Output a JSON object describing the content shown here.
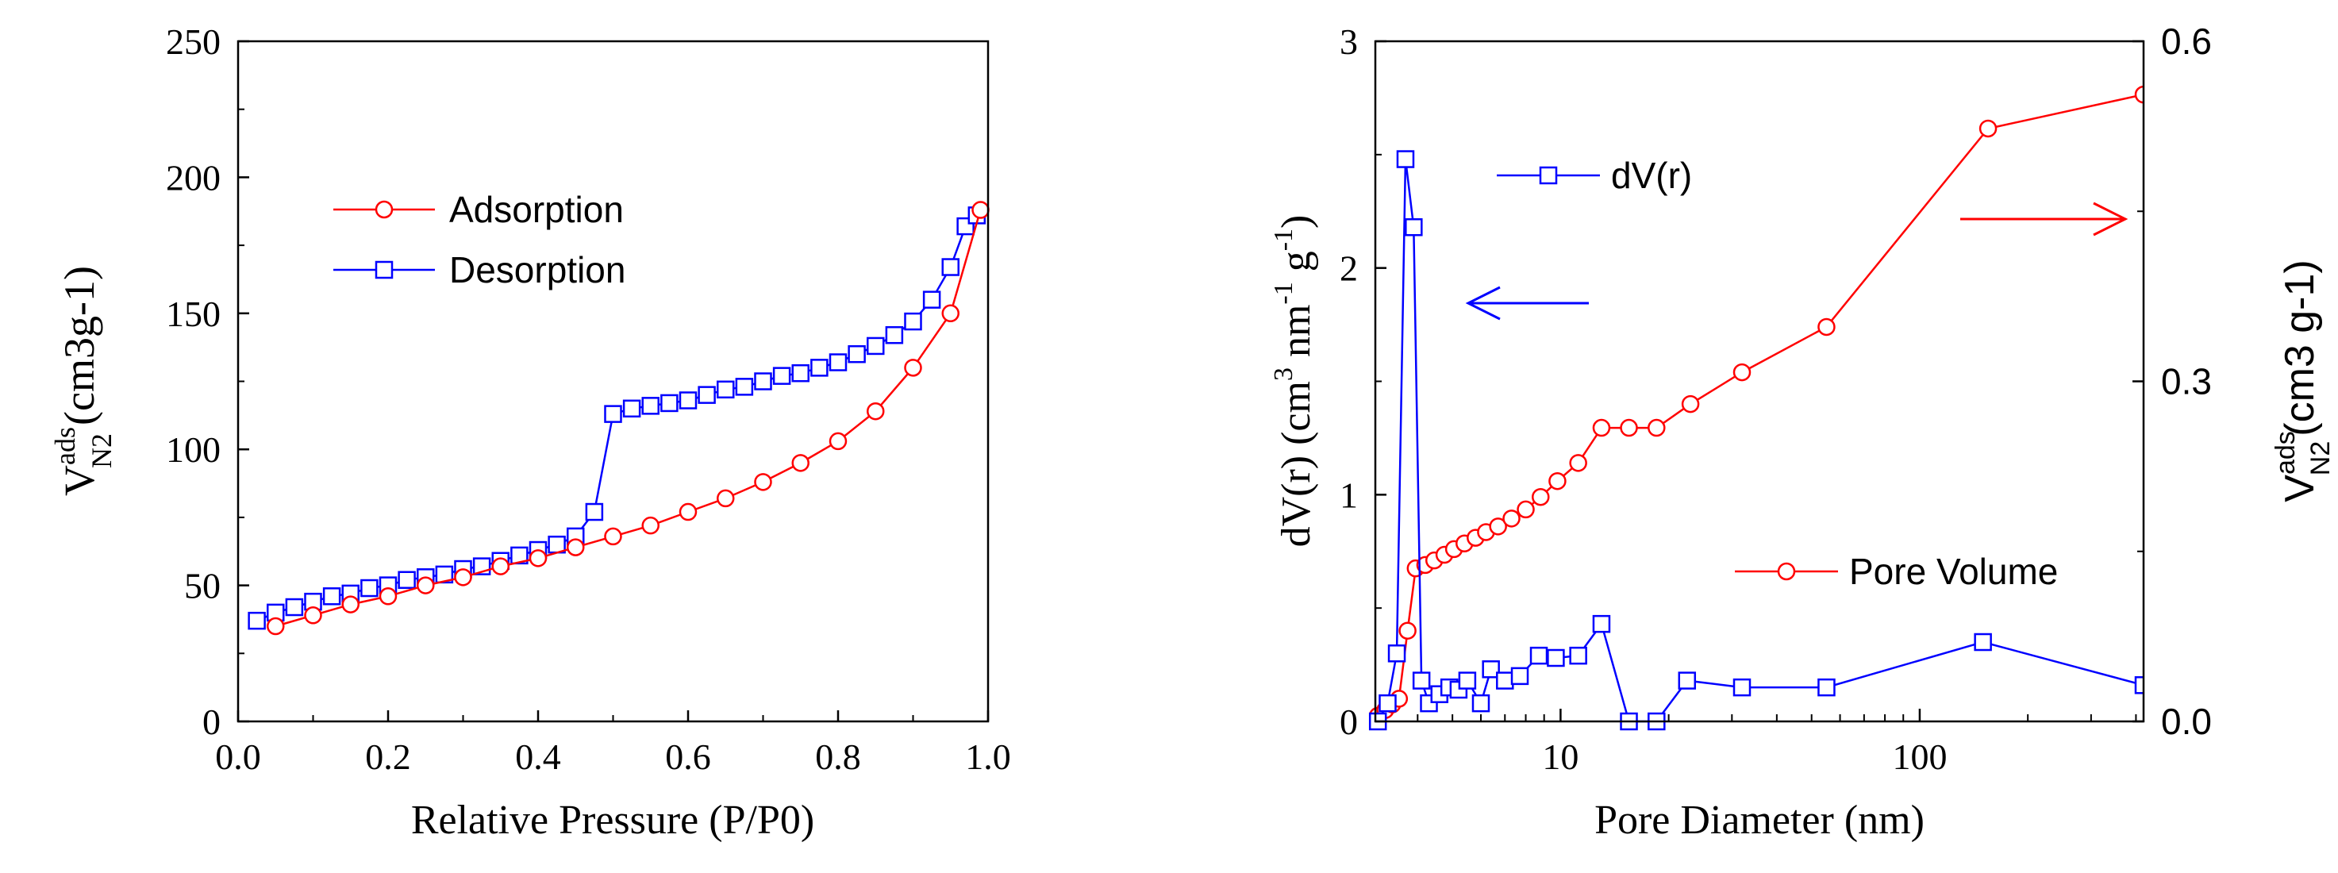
{
  "colors": {
    "adsorption": "#ff0000",
    "desorption": "#0000ff",
    "axis": "#000000"
  },
  "chart_data": [
    {
      "type": "line",
      "xlabel": "Relative Pressure (P/P0)",
      "ylabel_main": "V",
      "ylabel_sup": "ads",
      "ylabel_sub": "N2",
      "ylabel_units": "(cm3g-1)",
      "xlim": [
        0.0,
        1.0
      ],
      "ylim": [
        0,
        250
      ],
      "xticks": [
        {
          "v": 0.0,
          "label": "0.0"
        },
        {
          "v": 0.2,
          "label": "0.2"
        },
        {
          "v": 0.4,
          "label": "0.4"
        },
        {
          "v": 0.6,
          "label": "0.6"
        },
        {
          "v": 0.8,
          "label": "0.8"
        },
        {
          "v": 1.0,
          "label": "1.0"
        }
      ],
      "yticks": [
        {
          "v": 0,
          "label": "0"
        },
        {
          "v": 50,
          "label": "50"
        },
        {
          "v": 100,
          "label": "100"
        },
        {
          "v": 150,
          "label": "150"
        },
        {
          "v": 200,
          "label": "200"
        },
        {
          "v": 250,
          "label": "250"
        }
      ],
      "legend_position": "upper-left",
      "series": [
        {
          "name": "Adsorption",
          "marker": "circle",
          "color": "#ff0000",
          "points": [
            [
              0.05,
              35
            ],
            [
              0.1,
              39
            ],
            [
              0.15,
              43
            ],
            [
              0.2,
              46
            ],
            [
              0.25,
              50
            ],
            [
              0.3,
              53
            ],
            [
              0.35,
              57
            ],
            [
              0.4,
              60
            ],
            [
              0.45,
              64
            ],
            [
              0.5,
              68
            ],
            [
              0.55,
              72
            ],
            [
              0.6,
              77
            ],
            [
              0.65,
              82
            ],
            [
              0.7,
              88
            ],
            [
              0.75,
              95
            ],
            [
              0.8,
              103
            ],
            [
              0.85,
              114
            ],
            [
              0.9,
              130
            ],
            [
              0.95,
              150
            ],
            [
              0.99,
              188
            ]
          ]
        },
        {
          "name": "Desorption",
          "marker": "square",
          "color": "#0000ff",
          "points": [
            [
              0.025,
              37
            ],
            [
              0.05,
              40
            ],
            [
              0.075,
              42
            ],
            [
              0.1,
              44
            ],
            [
              0.125,
              46
            ],
            [
              0.15,
              47
            ],
            [
              0.175,
              49
            ],
            [
              0.2,
              50
            ],
            [
              0.225,
              52
            ],
            [
              0.25,
              53
            ],
            [
              0.275,
              54
            ],
            [
              0.3,
              56
            ],
            [
              0.325,
              57
            ],
            [
              0.35,
              59
            ],
            [
              0.375,
              61
            ],
            [
              0.4,
              63
            ],
            [
              0.425,
              65
            ],
            [
              0.45,
              68
            ],
            [
              0.475,
              77
            ],
            [
              0.5,
              113
            ],
            [
              0.525,
              115
            ],
            [
              0.55,
              116
            ],
            [
              0.575,
              117
            ],
            [
              0.6,
              118
            ],
            [
              0.625,
              120
            ],
            [
              0.65,
              122
            ],
            [
              0.675,
              123
            ],
            [
              0.7,
              125
            ],
            [
              0.725,
              127
            ],
            [
              0.75,
              128
            ],
            [
              0.775,
              130
            ],
            [
              0.8,
              132
            ],
            [
              0.825,
              135
            ],
            [
              0.85,
              138
            ],
            [
              0.875,
              142
            ],
            [
              0.9,
              147
            ],
            [
              0.925,
              155
            ],
            [
              0.95,
              167
            ],
            [
              0.97,
              182
            ],
            [
              0.985,
              186
            ]
          ]
        }
      ]
    },
    {
      "type": "line",
      "xscale": "log",
      "xlabel": "Pore Diameter (nm)",
      "ylabel_left": "dV(r) (cm3 nm-1 g-1)",
      "ylabel_right_main": "V",
      "ylabel_right_sup": "ads",
      "ylabel_right_sub": "N2",
      "ylabel_right_units": "(cm3 g-1)",
      "xlim": [
        3.05,
        420
      ],
      "ylim_left": [
        0,
        3
      ],
      "ylim_right": [
        0.0,
        0.6
      ],
      "xticks": [
        {
          "v": 10,
          "label": "10"
        },
        {
          "v": 100,
          "label": "100"
        }
      ],
      "xminor": [
        4,
        5,
        6,
        7,
        8,
        9,
        20,
        30,
        40,
        50,
        60,
        70,
        80,
        90,
        200,
        300,
        400
      ],
      "yticks_left": [
        {
          "v": 0,
          "label": "0"
        },
        {
          "v": 1,
          "label": "1"
        },
        {
          "v": 2,
          "label": "2"
        },
        {
          "v": 3,
          "label": "3"
        }
      ],
      "yticks_right": [
        {
          "v": 0.0,
          "label": "0.0"
        },
        {
          "v": 0.3,
          "label": "0.3"
        },
        {
          "v": 0.6,
          "label": "0.6"
        }
      ],
      "annotations": [
        "blue arrow pointing left to left axis",
        "red arrow pointing right to right axis"
      ],
      "series": [
        {
          "name": "dV(r)",
          "axis": "left",
          "marker": "square",
          "color": "#0000ff",
          "points": [
            [
              3.1,
              0.0
            ],
            [
              3.3,
              0.08
            ],
            [
              3.5,
              0.3
            ],
            [
              3.7,
              2.48
            ],
            [
              3.9,
              2.18
            ],
            [
              4.1,
              0.18
            ],
            [
              4.3,
              0.08
            ],
            [
              4.6,
              0.12
            ],
            [
              4.9,
              0.15
            ],
            [
              5.2,
              0.14
            ],
            [
              5.5,
              0.18
            ],
            [
              6.0,
              0.08
            ],
            [
              6.4,
              0.23
            ],
            [
              7.0,
              0.18
            ],
            [
              7.7,
              0.2
            ],
            [
              8.7,
              0.29
            ],
            [
              9.7,
              0.28
            ],
            [
              11.2,
              0.29
            ],
            [
              13.0,
              0.43
            ],
            [
              15.5,
              0.0
            ],
            [
              18.5,
              0.0
            ],
            [
              22.5,
              0.18
            ],
            [
              32.0,
              0.15
            ],
            [
              55.0,
              0.15
            ],
            [
              150,
              0.35
            ],
            [
              420,
              0.16
            ]
          ]
        },
        {
          "name": "Pore Volume",
          "axis": "right",
          "marker": "circle",
          "color": "#ff0000",
          "points": [
            [
              3.1,
              0.005
            ],
            [
              3.25,
              0.01
            ],
            [
              3.4,
              0.015
            ],
            [
              3.55,
              0.02
            ],
            [
              3.75,
              0.08
            ],
            [
              3.95,
              0.135
            ],
            [
              4.2,
              0.138
            ],
            [
              4.45,
              0.142
            ],
            [
              4.75,
              0.147
            ],
            [
              5.05,
              0.152
            ],
            [
              5.4,
              0.157
            ],
            [
              5.8,
              0.162
            ],
            [
              6.2,
              0.167
            ],
            [
              6.7,
              0.172
            ],
            [
              7.3,
              0.179
            ],
            [
              8.0,
              0.187
            ],
            [
              8.8,
              0.198
            ],
            [
              9.8,
              0.212
            ],
            [
              11.2,
              0.228
            ],
            [
              13.0,
              0.259
            ],
            [
              15.5,
              0.259
            ],
            [
              18.5,
              0.259
            ],
            [
              23.0,
              0.28
            ],
            [
              32.0,
              0.308
            ],
            [
              55.0,
              0.348
            ],
            [
              155.0,
              0.523
            ],
            [
              420,
              0.553
            ]
          ]
        }
      ]
    }
  ]
}
